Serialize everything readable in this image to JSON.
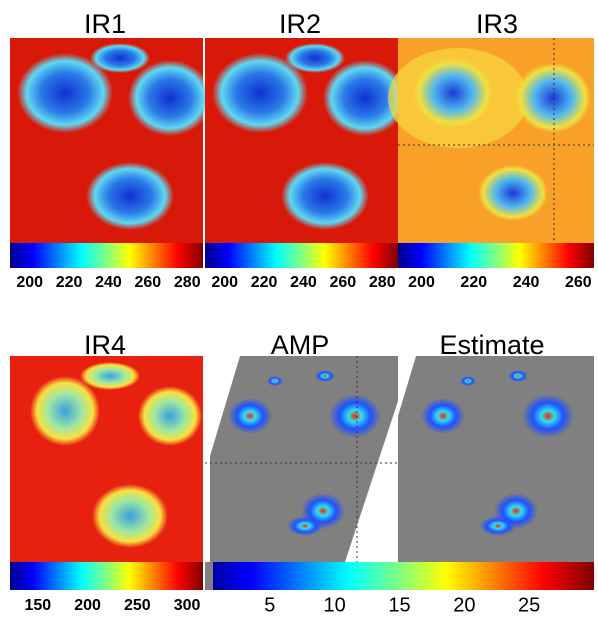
{
  "panels": [
    {
      "title": "IR1"
    },
    {
      "title": "IR2"
    },
    {
      "title": "IR3"
    },
    {
      "title": "IR4"
    },
    {
      "title": "AMP"
    },
    {
      "title": "Estimate"
    }
  ],
  "colorbars": [
    {
      "lim": [
        190,
        288
      ],
      "ticks": [
        200,
        220,
        240,
        260,
        280
      ]
    },
    {
      "lim": [
        190,
        288
      ],
      "ticks": [
        200,
        220,
        240,
        260,
        280
      ]
    },
    {
      "lim": [
        191,
        266
      ],
      "ticks": [
        200,
        220,
        240,
        260
      ]
    },
    {
      "lim": [
        122,
        316
      ],
      "ticks": [
        150,
        200,
        250,
        300
      ]
    },
    {
      "lim": [
        0,
        30
      ],
      "ticks": [
        5,
        10,
        15,
        20,
        25
      ]
    }
  ]
}
